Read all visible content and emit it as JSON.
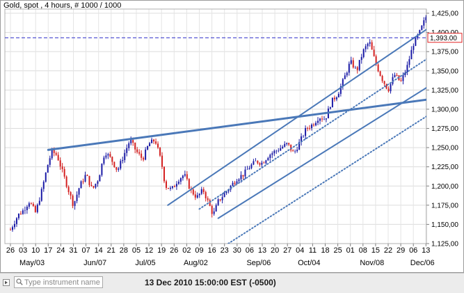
{
  "window": {
    "title": "Gold, spot , 4 hours, # 1000 / 1000"
  },
  "footer": {
    "search_placeholder": "Type instrument name",
    "timestamp": "13 Dec 2010 15:00:00  EST (-0500)"
  },
  "chart_data": {
    "type": "candlestick",
    "title": "Gold, spot , 4 hours, # 1000 / 1000",
    "ylim": [
      1125,
      1450
    ],
    "yticks": [
      1125,
      1150,
      1175,
      1200,
      1225,
      1250,
      1275,
      1300,
      1325,
      1350,
      1375,
      1400,
      1425
    ],
    "ytick_labels": [
      "1,125,00",
      "1,150,00",
      "1,175,00",
      "1,200,00",
      "1,225,00",
      "1,250,00",
      "1,275,00",
      "1,300,00",
      "1,325,00",
      "1,350,00",
      "1,375,00",
      "1,400,00",
      "1,425,00"
    ],
    "day_labels": [
      "26",
      "03",
      "10",
      "17",
      "24",
      "31",
      "07",
      "14",
      "21",
      "28",
      "05",
      "12",
      "19",
      "26",
      "02",
      "09",
      "16",
      "23",
      "30",
      "06",
      "13",
      "20",
      "27",
      "04",
      "11",
      "18",
      "25",
      "01",
      "08",
      "15",
      "22",
      "29",
      "06",
      "13"
    ],
    "month_labels": [
      {
        "label": "May/03",
        "day_index": 1
      },
      {
        "label": "Jun/07",
        "day_index": 6
      },
      {
        "label": "Jul/05",
        "day_index": 10
      },
      {
        "label": "Aug/02",
        "day_index": 14
      },
      {
        "label": "Sep/06",
        "day_index": 19
      },
      {
        "label": "Oct/04",
        "day_index": 23
      },
      {
        "label": "Nov/08",
        "day_index": 28
      },
      {
        "label": "Dec/06",
        "day_index": 32
      }
    ],
    "current_price": 1393,
    "current_price_label": "1,393.00",
    "grid": true,
    "colors": {
      "up": "#1a1aa6",
      "down": "#d42020",
      "trendline": "#4a78b8",
      "price_line": "#2a2ac8",
      "price_tag": "#e02020"
    },
    "price_path": [
      {
        "d": 0,
        "p": 1143
      },
      {
        "d": 0.6,
        "p": 1162
      },
      {
        "d": 1.0,
        "p": 1168
      },
      {
        "d": 1.5,
        "p": 1180
      },
      {
        "d": 2.0,
        "p": 1165
      },
      {
        "d": 2.5,
        "p": 1195
      },
      {
        "d": 3.0,
        "p": 1230
      },
      {
        "d": 3.3,
        "p": 1245
      },
      {
        "d": 3.7,
        "p": 1240
      },
      {
        "d": 4.2,
        "p": 1215
      },
      {
        "d": 4.7,
        "p": 1190
      },
      {
        "d": 5.0,
        "p": 1175
      },
      {
        "d": 5.5,
        "p": 1200
      },
      {
        "d": 6.0,
        "p": 1215
      },
      {
        "d": 6.5,
        "p": 1195
      },
      {
        "d": 7.0,
        "p": 1210
      },
      {
        "d": 7.5,
        "p": 1245
      },
      {
        "d": 8.0,
        "p": 1235
      },
      {
        "d": 8.5,
        "p": 1220
      },
      {
        "d": 9.0,
        "p": 1240
      },
      {
        "d": 9.5,
        "p": 1260
      },
      {
        "d": 10.0,
        "p": 1245
      },
      {
        "d": 10.5,
        "p": 1235
      },
      {
        "d": 11.0,
        "p": 1255
      },
      {
        "d": 11.5,
        "p": 1260
      },
      {
        "d": 12.0,
        "p": 1230
      },
      {
        "d": 12.3,
        "p": 1200
      },
      {
        "d": 12.8,
        "p": 1195
      },
      {
        "d": 13.3,
        "p": 1208
      },
      {
        "d": 13.8,
        "p": 1215
      },
      {
        "d": 14.3,
        "p": 1195
      },
      {
        "d": 14.8,
        "p": 1185
      },
      {
        "d": 15.3,
        "p": 1195
      },
      {
        "d": 15.8,
        "p": 1175
      },
      {
        "d": 16.1,
        "p": 1162
      },
      {
        "d": 16.5,
        "p": 1180
      },
      {
        "d": 17.0,
        "p": 1190
      },
      {
        "d": 17.5,
        "p": 1200
      },
      {
        "d": 18.0,
        "p": 1210
      },
      {
        "d": 18.5,
        "p": 1215
      },
      {
        "d": 19.0,
        "p": 1225
      },
      {
        "d": 19.5,
        "p": 1232
      },
      {
        "d": 20.0,
        "p": 1230
      },
      {
        "d": 20.5,
        "p": 1240
      },
      {
        "d": 21.0,
        "p": 1245
      },
      {
        "d": 21.5,
        "p": 1250
      },
      {
        "d": 22.0,
        "p": 1255
      },
      {
        "d": 22.5,
        "p": 1242
      },
      {
        "d": 23.0,
        "p": 1258
      },
      {
        "d": 23.5,
        "p": 1275
      },
      {
        "d": 24.0,
        "p": 1280
      },
      {
        "d": 24.5,
        "p": 1290
      },
      {
        "d": 25.0,
        "p": 1287
      },
      {
        "d": 25.5,
        "p": 1310
      },
      {
        "d": 26.0,
        "p": 1320
      },
      {
        "d": 26.5,
        "p": 1340
      },
      {
        "d": 27.0,
        "p": 1362
      },
      {
        "d": 27.5,
        "p": 1350
      },
      {
        "d": 28.0,
        "p": 1375
      },
      {
        "d": 28.5,
        "p": 1388
      },
      {
        "d": 29.0,
        "p": 1360
      },
      {
        "d": 29.5,
        "p": 1340
      },
      {
        "d": 30.0,
        "p": 1325
      },
      {
        "d": 30.5,
        "p": 1345
      },
      {
        "d": 31.0,
        "p": 1335
      },
      {
        "d": 31.5,
        "p": 1355
      },
      {
        "d": 32.0,
        "p": 1385
      },
      {
        "d": 32.5,
        "p": 1400
      },
      {
        "d": 33.0,
        "p": 1420
      },
      {
        "d": 33.4,
        "p": 1405
      },
      {
        "d": 33.8,
        "p": 1385
      },
      {
        "d": 34.3,
        "p": 1370
      },
      {
        "d": 34.7,
        "p": 1348
      },
      {
        "d": 35.1,
        "p": 1332
      },
      {
        "d": 35.6,
        "p": 1350
      },
      {
        "d": 36.0,
        "p": 1360
      },
      {
        "d": 36.5,
        "p": 1370
      },
      {
        "d": 37.0,
        "p": 1380
      },
      {
        "d": 37.5,
        "p": 1395
      },
      {
        "d": 38.0,
        "p": 1400
      },
      {
        "d": 38.5,
        "p": 1395
      },
      {
        "d": 39.0,
        "p": 1400
      },
      {
        "d": 39.4,
        "p": 1430
      },
      {
        "d": 39.8,
        "p": 1405
      },
      {
        "d": 40.2,
        "p": 1390
      },
      {
        "d": 40.6,
        "p": 1382
      },
      {
        "d": 41.0,
        "p": 1398
      },
      {
        "d": 41.3,
        "p": 1393
      }
    ],
    "trendlines": [
      {
        "style": "solid",
        "width": 3,
        "points": [
          {
            "d": 3.0,
            "p": 1247
          },
          {
            "d": 48.0,
            "p": 1345
          }
        ]
      },
      {
        "style": "solid",
        "width": 2,
        "points": [
          {
            "d": 12.5,
            "p": 1175
          },
          {
            "d": 37.0,
            "p": 1448
          }
        ]
      },
      {
        "style": "solid",
        "width": 2,
        "points": [
          {
            "d": 16.5,
            "p": 1158
          },
          {
            "d": 42.0,
            "p": 1420
          }
        ]
      },
      {
        "style": "dotted",
        "width": 2,
        "points": [
          {
            "d": 15.0,
            "p": 1170
          },
          {
            "d": 39.5,
            "p": 1435
          }
        ]
      },
      {
        "style": "dotted",
        "width": 2,
        "points": [
          {
            "d": 17.3,
            "p": 1125
          },
          {
            "d": 42.0,
            "p": 1385
          }
        ]
      }
    ]
  }
}
